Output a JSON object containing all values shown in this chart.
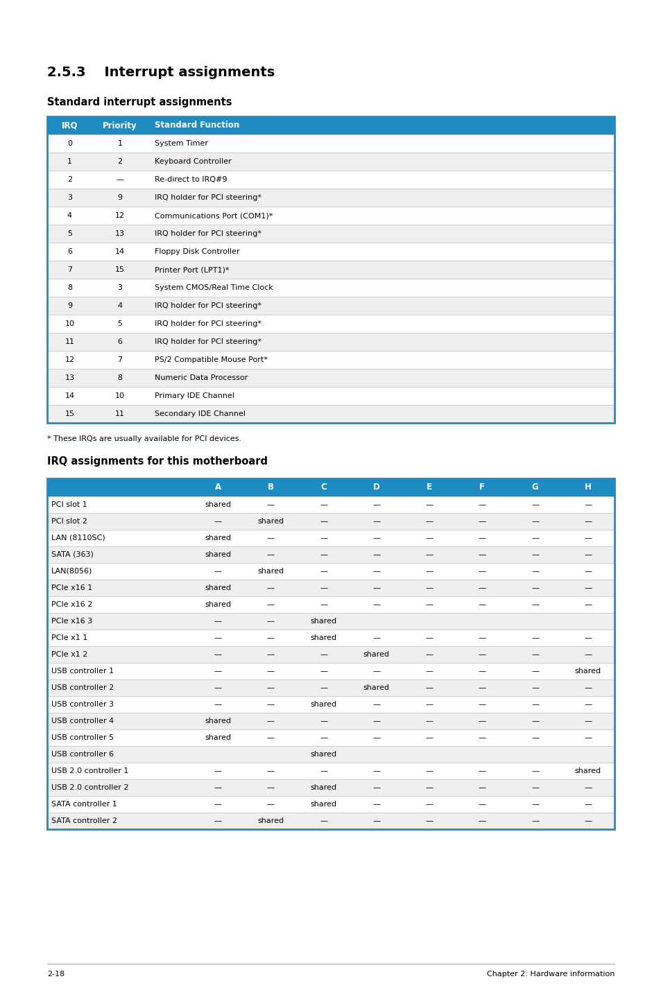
{
  "title_section": "2.5.3    Interrupt assignments",
  "subtitle1": "Standard interrupt assignments",
  "subtitle2": "IRQ assignments for this motherboard",
  "footnote": "* These IRQs are usually available for PCI devices.",
  "footer_left": "2-18",
  "footer_right": "Chapter 2: Hardware information",
  "header_color": "#1e8bc3",
  "header_text_color": "#ffffff",
  "border_color": "#1e8bc3",
  "row_alt_color": "#efefef",
  "row_white_color": "#ffffff",
  "text_color": "#000000",
  "table1_headers": [
    "IRQ",
    "Priority",
    "Standard Function"
  ],
  "table1_data": [
    [
      "0",
      "1",
      "System Timer"
    ],
    [
      "1",
      "2",
      "Keyboard Controller"
    ],
    [
      "2",
      "—",
      "Re-direct to IRQ#9"
    ],
    [
      "3",
      "9",
      "IRQ holder for PCI steering*"
    ],
    [
      "4",
      "12",
      "Communications Port (COM1)*"
    ],
    [
      "5",
      "13",
      "IRQ holder for PCI steering*"
    ],
    [
      "6",
      "14",
      "Floppy Disk Controller"
    ],
    [
      "7",
      "15",
      "Printer Port (LPT1)*"
    ],
    [
      "8",
      "3",
      "System CMOS/Real Time Clock"
    ],
    [
      "9",
      "4",
      "IRQ holder for PCI steering*"
    ],
    [
      "10",
      "5",
      "IRQ holder for PCI steering*"
    ],
    [
      "11",
      "6",
      "IRQ holder for PCI steering*"
    ],
    [
      "12",
      "7",
      "PS/2 Compatible Mouse Port*"
    ],
    [
      "13",
      "8",
      "Numeric Data Processor"
    ],
    [
      "14",
      "10",
      "Primary IDE Channel"
    ],
    [
      "15",
      "11",
      "Secondary IDE Channel"
    ]
  ],
  "table2_headers": [
    "",
    "A",
    "B",
    "C",
    "D",
    "E",
    "F",
    "G",
    "H"
  ],
  "table2_data": [
    [
      "PCI slot 1",
      "shared",
      "—",
      "—",
      "—",
      "—",
      "—",
      "—",
      "—"
    ],
    [
      "PCI slot 2",
      "—",
      "shared",
      "—",
      "—",
      "—",
      "—",
      "—",
      "—"
    ],
    [
      "LAN (8110SC)",
      "shared",
      "—",
      "—",
      "—",
      "—",
      "—",
      "—",
      "—"
    ],
    [
      "SATA (363)",
      "shared",
      "—",
      "—",
      "—",
      "—",
      "—",
      "—",
      "—"
    ],
    [
      "LAN(8056)",
      "—",
      "shared",
      "—",
      "—",
      "—",
      "—",
      "—",
      "—"
    ],
    [
      "PCIe x16 1",
      "shared",
      "—",
      "—",
      "—",
      "—",
      "—",
      "—",
      "—"
    ],
    [
      "PCIe x16 2",
      "shared",
      "—",
      "—",
      "—",
      "—",
      "—",
      "—",
      "—"
    ],
    [
      "PCIe x16 3",
      "—",
      "—",
      "shared",
      "",
      "",
      "",
      "",
      ""
    ],
    [
      "PCIe x1 1",
      "—",
      "—",
      "shared",
      "—",
      "—",
      "—",
      "—",
      "—"
    ],
    [
      "PCIe x1 2",
      "—",
      "—",
      "—",
      "shared",
      "—",
      "—",
      "—",
      "—"
    ],
    [
      "USB controller 1",
      "—",
      "—",
      "—",
      "—",
      "—",
      "—",
      "—",
      "shared"
    ],
    [
      "USB controller 2",
      "—",
      "—",
      "—",
      "shared",
      "—",
      "—",
      "—",
      "—"
    ],
    [
      "USB controller 3",
      "—",
      "—",
      "shared",
      "—",
      "—",
      "—",
      "—",
      "—"
    ],
    [
      "USB controller 4",
      "shared",
      "—",
      "—",
      "—",
      "—",
      "—",
      "—",
      "—"
    ],
    [
      "USB controller 5",
      "shared",
      "—",
      "—",
      "—",
      "—",
      "—",
      "—",
      "—"
    ],
    [
      "USB controller 6",
      "",
      "",
      "shared",
      "",
      "",
      "",
      "",
      ""
    ],
    [
      "USB 2.0 controller 1",
      "—",
      "—",
      "—",
      "—",
      "—",
      "—",
      "—",
      "shared"
    ],
    [
      "USB 2.0 controller 2",
      "—",
      "—",
      "shared",
      "—",
      "—",
      "—",
      "—",
      "—"
    ],
    [
      "SATA controller 1",
      "—",
      "—",
      "shared",
      "—",
      "—",
      "—",
      "—",
      "—"
    ],
    [
      "SATA controller 2",
      "—",
      "shared",
      "—",
      "—",
      "—",
      "—",
      "—",
      "—"
    ]
  ]
}
